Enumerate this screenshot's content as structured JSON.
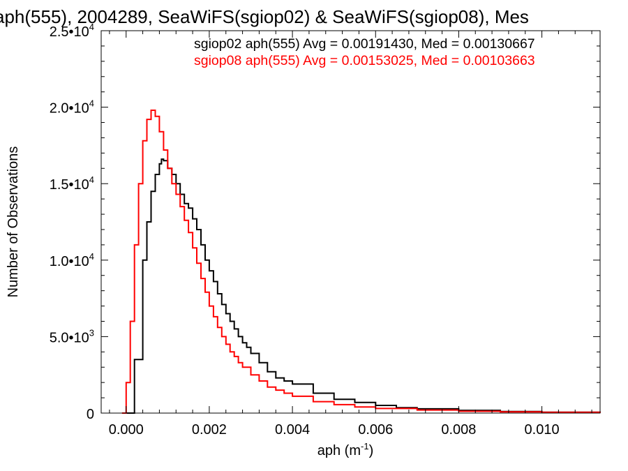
{
  "chart_data": {
    "type": "line",
    "title": "aph(555), 2004289, SeaWiFS(sgiop02) & SeaWiFS(sgiop08), Mes",
    "xlabel": "aph (m",
    "xlabel_sup": "-1",
    "xlabel_end": ")",
    "ylabel": "Number of Observations",
    "xlim": [
      -0.0006,
      0.0114
    ],
    "ylim": [
      0,
      25000
    ],
    "x_ticks": [
      {
        "value": 0.0,
        "label": "0.000"
      },
      {
        "value": 0.002,
        "label": "0.002"
      },
      {
        "value": 0.004,
        "label": "0.004"
      },
      {
        "value": 0.006,
        "label": "0.006"
      },
      {
        "value": 0.008,
        "label": "0.008"
      },
      {
        "value": 0.01,
        "label": "0.010"
      }
    ],
    "y_ticks": [
      {
        "value": 0,
        "label": "0",
        "sup": ""
      },
      {
        "value": 5000,
        "label": "5.0•10",
        "sup": "3"
      },
      {
        "value": 10000,
        "label": "1.0•10",
        "sup": "4"
      },
      {
        "value": 15000,
        "label": "1.5•10",
        "sup": "4"
      },
      {
        "value": 20000,
        "label": "2.0•10",
        "sup": "4"
      },
      {
        "value": 25000,
        "label": "2.5•10",
        "sup": "4"
      }
    ],
    "grid": false,
    "legend_position": "top-right",
    "series": [
      {
        "name": "sgiop02 aph(555) Avg = 0.00191430, Med = 0.00130667",
        "color": "#000000",
        "points": [
          [
            0.0,
            0
          ],
          [
            0.0002,
            3500
          ],
          [
            0.0004,
            10000
          ],
          [
            0.0005,
            12500
          ],
          [
            0.0006,
            14500
          ],
          [
            0.0007,
            15600
          ],
          [
            0.0008,
            16300
          ],
          [
            0.00085,
            16600
          ],
          [
            0.0009,
            16500
          ],
          [
            0.001,
            16000
          ],
          [
            0.0011,
            15600
          ],
          [
            0.0012,
            15000
          ],
          [
            0.0013,
            14300
          ],
          [
            0.0014,
            13700
          ],
          [
            0.0015,
            13400
          ],
          [
            0.0016,
            12700
          ],
          [
            0.0017,
            12000
          ],
          [
            0.0018,
            11000
          ],
          [
            0.0019,
            10000
          ],
          [
            0.002,
            9300
          ],
          [
            0.0021,
            8600
          ],
          [
            0.0022,
            7800
          ],
          [
            0.0023,
            7100
          ],
          [
            0.0024,
            6500
          ],
          [
            0.0025,
            6000
          ],
          [
            0.0026,
            5500
          ],
          [
            0.0027,
            5000
          ],
          [
            0.0028,
            4600
          ],
          [
            0.0029,
            4300
          ],
          [
            0.003,
            3900
          ],
          [
            0.0032,
            3300
          ],
          [
            0.0034,
            2700
          ],
          [
            0.0036,
            2300
          ],
          [
            0.0038,
            2100
          ],
          [
            0.004,
            1900
          ],
          [
            0.0045,
            1300
          ],
          [
            0.005,
            900
          ],
          [
            0.0055,
            700
          ],
          [
            0.006,
            500
          ],
          [
            0.0065,
            350
          ],
          [
            0.007,
            280
          ],
          [
            0.008,
            180
          ],
          [
            0.009,
            100
          ],
          [
            0.01,
            60
          ],
          [
            0.0114,
            30
          ]
        ]
      },
      {
        "name": "sgiop08 aph(555) Avg = 0.00153025, Med = 0.00103663",
        "color": "#ff0000",
        "points": [
          [
            -0.0001,
            0
          ],
          [
            0.0,
            2000
          ],
          [
            0.0001,
            6000
          ],
          [
            0.0002,
            11000
          ],
          [
            0.0003,
            15000
          ],
          [
            0.0004,
            17800
          ],
          [
            0.0005,
            19200
          ],
          [
            0.0006,
            19800
          ],
          [
            0.0007,
            19400
          ],
          [
            0.0008,
            18400
          ],
          [
            0.0009,
            17200
          ],
          [
            0.001,
            16000
          ],
          [
            0.0011,
            15000
          ],
          [
            0.0012,
            14300
          ],
          [
            0.0013,
            13500
          ],
          [
            0.0014,
            12600
          ],
          [
            0.0015,
            11800
          ],
          [
            0.0016,
            10800
          ],
          [
            0.0017,
            9800
          ],
          [
            0.0018,
            8800
          ],
          [
            0.0019,
            7900
          ],
          [
            0.002,
            7000
          ],
          [
            0.0021,
            6300
          ],
          [
            0.0022,
            5600
          ],
          [
            0.0023,
            5000
          ],
          [
            0.0024,
            4500
          ],
          [
            0.0025,
            4000
          ],
          [
            0.0026,
            3700
          ],
          [
            0.0027,
            3300
          ],
          [
            0.0028,
            3000
          ],
          [
            0.003,
            2500
          ],
          [
            0.0032,
            2100
          ],
          [
            0.0034,
            1700
          ],
          [
            0.0036,
            1500
          ],
          [
            0.0038,
            1300
          ],
          [
            0.004,
            1100
          ],
          [
            0.0045,
            750
          ],
          [
            0.005,
            550
          ],
          [
            0.0055,
            400
          ],
          [
            0.006,
            300
          ],
          [
            0.007,
            200
          ],
          [
            0.008,
            120
          ],
          [
            0.009,
            80
          ],
          [
            0.01,
            50
          ],
          [
            0.0114,
            20
          ]
        ]
      }
    ]
  }
}
